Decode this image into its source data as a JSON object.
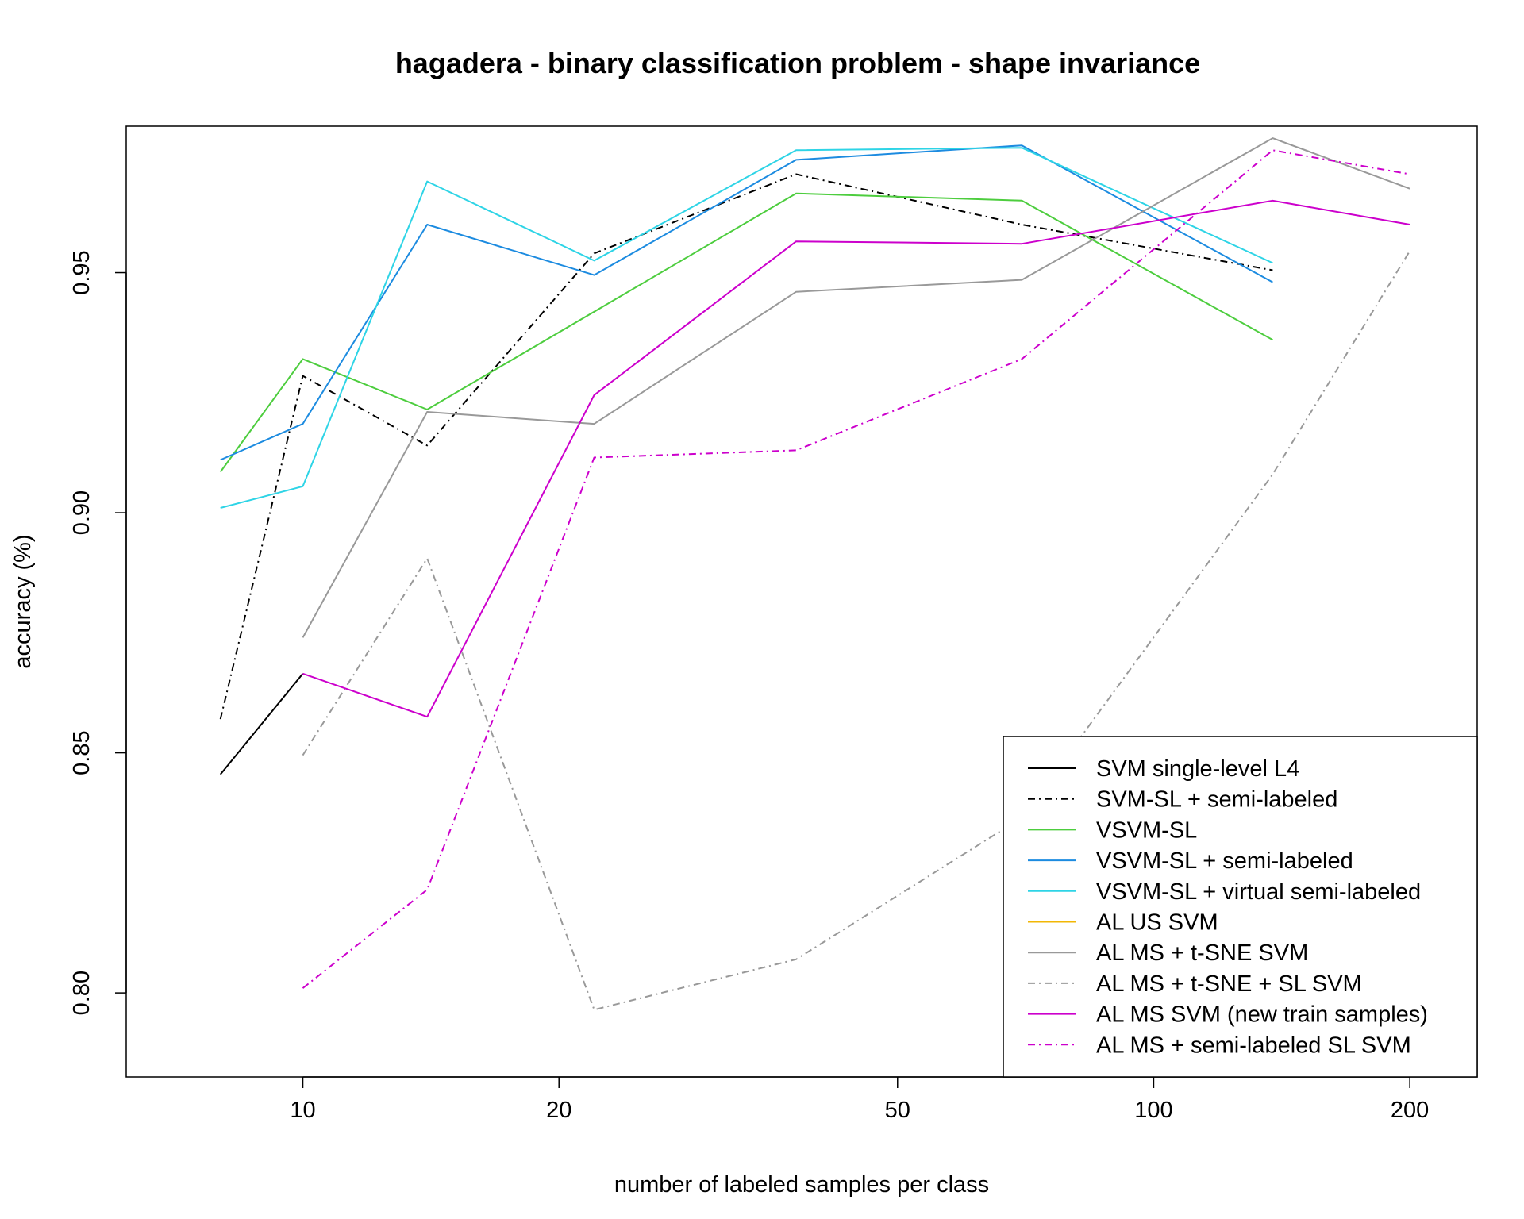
{
  "chart_data": {
    "type": "line",
    "title": "hagadera - binary classification problem - shape invariance",
    "xlabel": "number of labeled samples per class",
    "ylabel": "accuracy (%)",
    "x_scale": "log",
    "xlim": [
      6.2,
      240
    ],
    "ylim": [
      0.7825,
      0.9805
    ],
    "x_ticks": [
      10,
      20,
      50,
      100,
      200
    ],
    "x_tick_labels": [
      "10",
      "20",
      "50",
      "100",
      "200"
    ],
    "y_ticks": [
      0.8,
      0.85,
      0.9,
      0.95
    ],
    "y_tick_labels": [
      "0.80",
      "0.85",
      "0.90",
      "0.95"
    ],
    "grid": false,
    "legend_position": "bottom-right",
    "series": [
      {
        "name": "SVM single-level L4",
        "color": "#000000",
        "dash": "solid",
        "x": [
          8,
          10
        ],
        "y": [
          0.8455,
          0.8665
        ]
      },
      {
        "name": "SVM-SL + semi-labeled",
        "color": "#000000",
        "dash": "dotdash",
        "x": [
          8,
          10,
          14,
          22,
          38,
          70,
          138
        ],
        "y": [
          0.857,
          0.9285,
          0.914,
          0.954,
          0.9705,
          0.96,
          0.9505
        ]
      },
      {
        "name": "VSVM-SL",
        "color": "#4DCD3E",
        "dash": "solid",
        "x": [
          8,
          10,
          14,
          38,
          70,
          138
        ],
        "y": [
          0.9085,
          0.932,
          0.9215,
          0.9665,
          0.965,
          0.936
        ]
      },
      {
        "name": "VSVM-SL + semi-labeled",
        "color": "#1C8BE0",
        "dash": "solid",
        "x": [
          8,
          10,
          14,
          22,
          38,
          70,
          138
        ],
        "y": [
          0.911,
          0.9185,
          0.96,
          0.9495,
          0.9735,
          0.9765,
          0.948
        ]
      },
      {
        "name": "VSVM-SL + virtual semi-labeled",
        "color": "#2ED4E6",
        "dash": "solid",
        "x": [
          8,
          10,
          14,
          22,
          38,
          70,
          138
        ],
        "y": [
          0.901,
          0.9055,
          0.969,
          0.9525,
          0.9755,
          0.976,
          0.952
        ]
      },
      {
        "name": "AL US SVM",
        "color": "#F2B705",
        "dash": "solid",
        "x": [],
        "y": []
      },
      {
        "name": "AL MS + t-SNE SVM",
        "color": "#999999",
        "dash": "solid",
        "x": [
          10,
          14,
          22,
          38,
          70,
          138,
          200
        ],
        "y": [
          0.874,
          0.921,
          0.9185,
          0.946,
          0.9485,
          0.978,
          0.9675
        ]
      },
      {
        "name": "AL MS + t-SNE + SL SVM",
        "color": "#999999",
        "dash": "dotdash",
        "x": [
          10,
          14,
          22,
          38,
          70,
          138,
          200
        ],
        "y": [
          0.8495,
          0.8905,
          0.7965,
          0.807,
          0.8365,
          0.908,
          0.9545
        ]
      },
      {
        "name": "AL MS SVM (new train samples)",
        "color": "#CC00CC",
        "dash": "solid",
        "x": [
          10,
          14,
          22,
          38,
          70,
          138,
          200
        ],
        "y": [
          0.8665,
          0.8575,
          0.9245,
          0.9565,
          0.956,
          0.965,
          0.96
        ]
      },
      {
        "name": "AL MS + semi-labeled SL SVM",
        "color": "#CC00CC",
        "dash": "dotdash",
        "x": [
          10,
          14,
          22,
          38,
          70,
          138,
          200
        ],
        "y": [
          0.801,
          0.8215,
          0.9115,
          0.913,
          0.932,
          0.9755,
          0.9705
        ]
      }
    ]
  }
}
